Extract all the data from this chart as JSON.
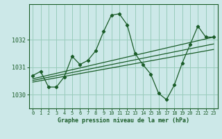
{
  "background_color": "#cce8e8",
  "plot_bg_color": "#cce8e8",
  "grid_color": "#99ccbb",
  "line_color": "#1a5c28",
  "ylim": [
    1029.5,
    1033.3
  ],
  "yticks": [
    1030,
    1031,
    1032
  ],
  "xlim": [
    -0.5,
    23.5
  ],
  "xticks": [
    0,
    1,
    2,
    3,
    4,
    5,
    6,
    7,
    8,
    9,
    10,
    11,
    12,
    13,
    14,
    15,
    16,
    17,
    18,
    19,
    20,
    21,
    22,
    23
  ],
  "xlabel": "Graphe pression niveau de la mer (hPa)",
  "series1": [
    1030.7,
    1030.85,
    1030.28,
    1030.28,
    1030.65,
    1031.4,
    1031.1,
    1031.25,
    1031.6,
    1032.3,
    1032.9,
    1032.95,
    1032.55,
    1031.5,
    1031.1,
    1030.75,
    1030.05,
    1029.82,
    1030.35,
    1031.15,
    1031.82,
    1032.5,
    1032.1,
    1032.1
  ],
  "trend1_x": [
    0,
    23
  ],
  "trend1_y": [
    1030.58,
    1032.1
  ],
  "trend2_x": [
    0,
    23
  ],
  "trend2_y": [
    1030.52,
    1031.85
  ],
  "trend3_x": [
    0,
    23
  ],
  "trend3_y": [
    1030.46,
    1031.65
  ]
}
